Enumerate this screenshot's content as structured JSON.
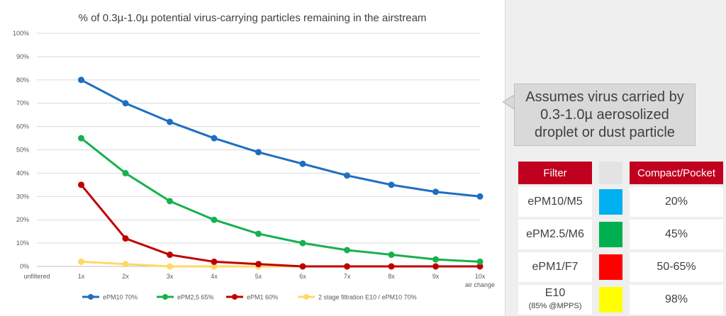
{
  "chart_data": {
    "type": "line",
    "title": "% of 0.3µ-1.0µ potential virus-carrying particles remaining in the airstream",
    "categories": [
      "unfiltered",
      "1x",
      "2x",
      "3x",
      "4x",
      "5x",
      "6x",
      "7x",
      "8x",
      "9x",
      "10x"
    ],
    "x_end_label": "air change",
    "yticks": [
      "0%",
      "10%",
      "20%",
      "30%",
      "40%",
      "50%",
      "60%",
      "70%",
      "80%",
      "90%",
      "100%"
    ],
    "ylim": [
      0,
      100
    ],
    "grid": true,
    "legend_position": "bottom",
    "series": [
      {
        "name": "ePM10 70%",
        "color": "#1f6fc0",
        "x": [
          "1x",
          "2x",
          "3x",
          "4x",
          "5x",
          "6x",
          "7x",
          "8x",
          "9x",
          "10x"
        ],
        "values": [
          80,
          70,
          62,
          55,
          49,
          44,
          39,
          35,
          32,
          30
        ]
      },
      {
        "name": "ePM2,5 65%",
        "color": "#18b04f",
        "x": [
          "1x",
          "2x",
          "3x",
          "4x",
          "5x",
          "6x",
          "7x",
          "8x",
          "9x",
          "10x"
        ],
        "values": [
          55,
          40,
          28,
          20,
          14,
          10,
          7,
          5,
          3,
          2
        ]
      },
      {
        "name": "ePM1 60%",
        "color": "#c00000",
        "x": [
          "1x",
          "2x",
          "3x",
          "4x",
          "5x",
          "6x",
          "7x",
          "8x",
          "9x",
          "10x"
        ],
        "values": [
          35,
          12,
          5,
          2,
          1,
          0,
          0,
          0,
          0,
          0
        ]
      },
      {
        "name": "2 stage filtration E10 / ePM10 70%",
        "color": "#ffd966",
        "x": [
          "1x",
          "2x",
          "3x",
          "4x",
          "5x",
          "6x",
          "7x",
          "8x",
          "9x",
          "10x"
        ],
        "values": [
          2,
          1,
          0,
          0,
          0,
          0,
          0,
          0,
          0,
          0
        ]
      }
    ]
  },
  "callout": {
    "line1": "Assumes virus carried by",
    "line2": "0.3-1.0µ aerosolized",
    "line3": "droplet or dust particle"
  },
  "filter_table": {
    "header_filter": "Filter",
    "header_compact": "Compact/Pocket",
    "rows": [
      {
        "filter": "ePM10/M5",
        "color": "#00b0f0",
        "value": "20%"
      },
      {
        "filter": "ePM2.5/M6",
        "color": "#00b050",
        "value": "45%"
      },
      {
        "filter": "ePM1/F7",
        "color": "#ff0000",
        "value": "50-65%"
      },
      {
        "filter": "E10",
        "sub": "(85% @MPPS)",
        "color": "#ffff00",
        "value": "98%"
      }
    ]
  }
}
